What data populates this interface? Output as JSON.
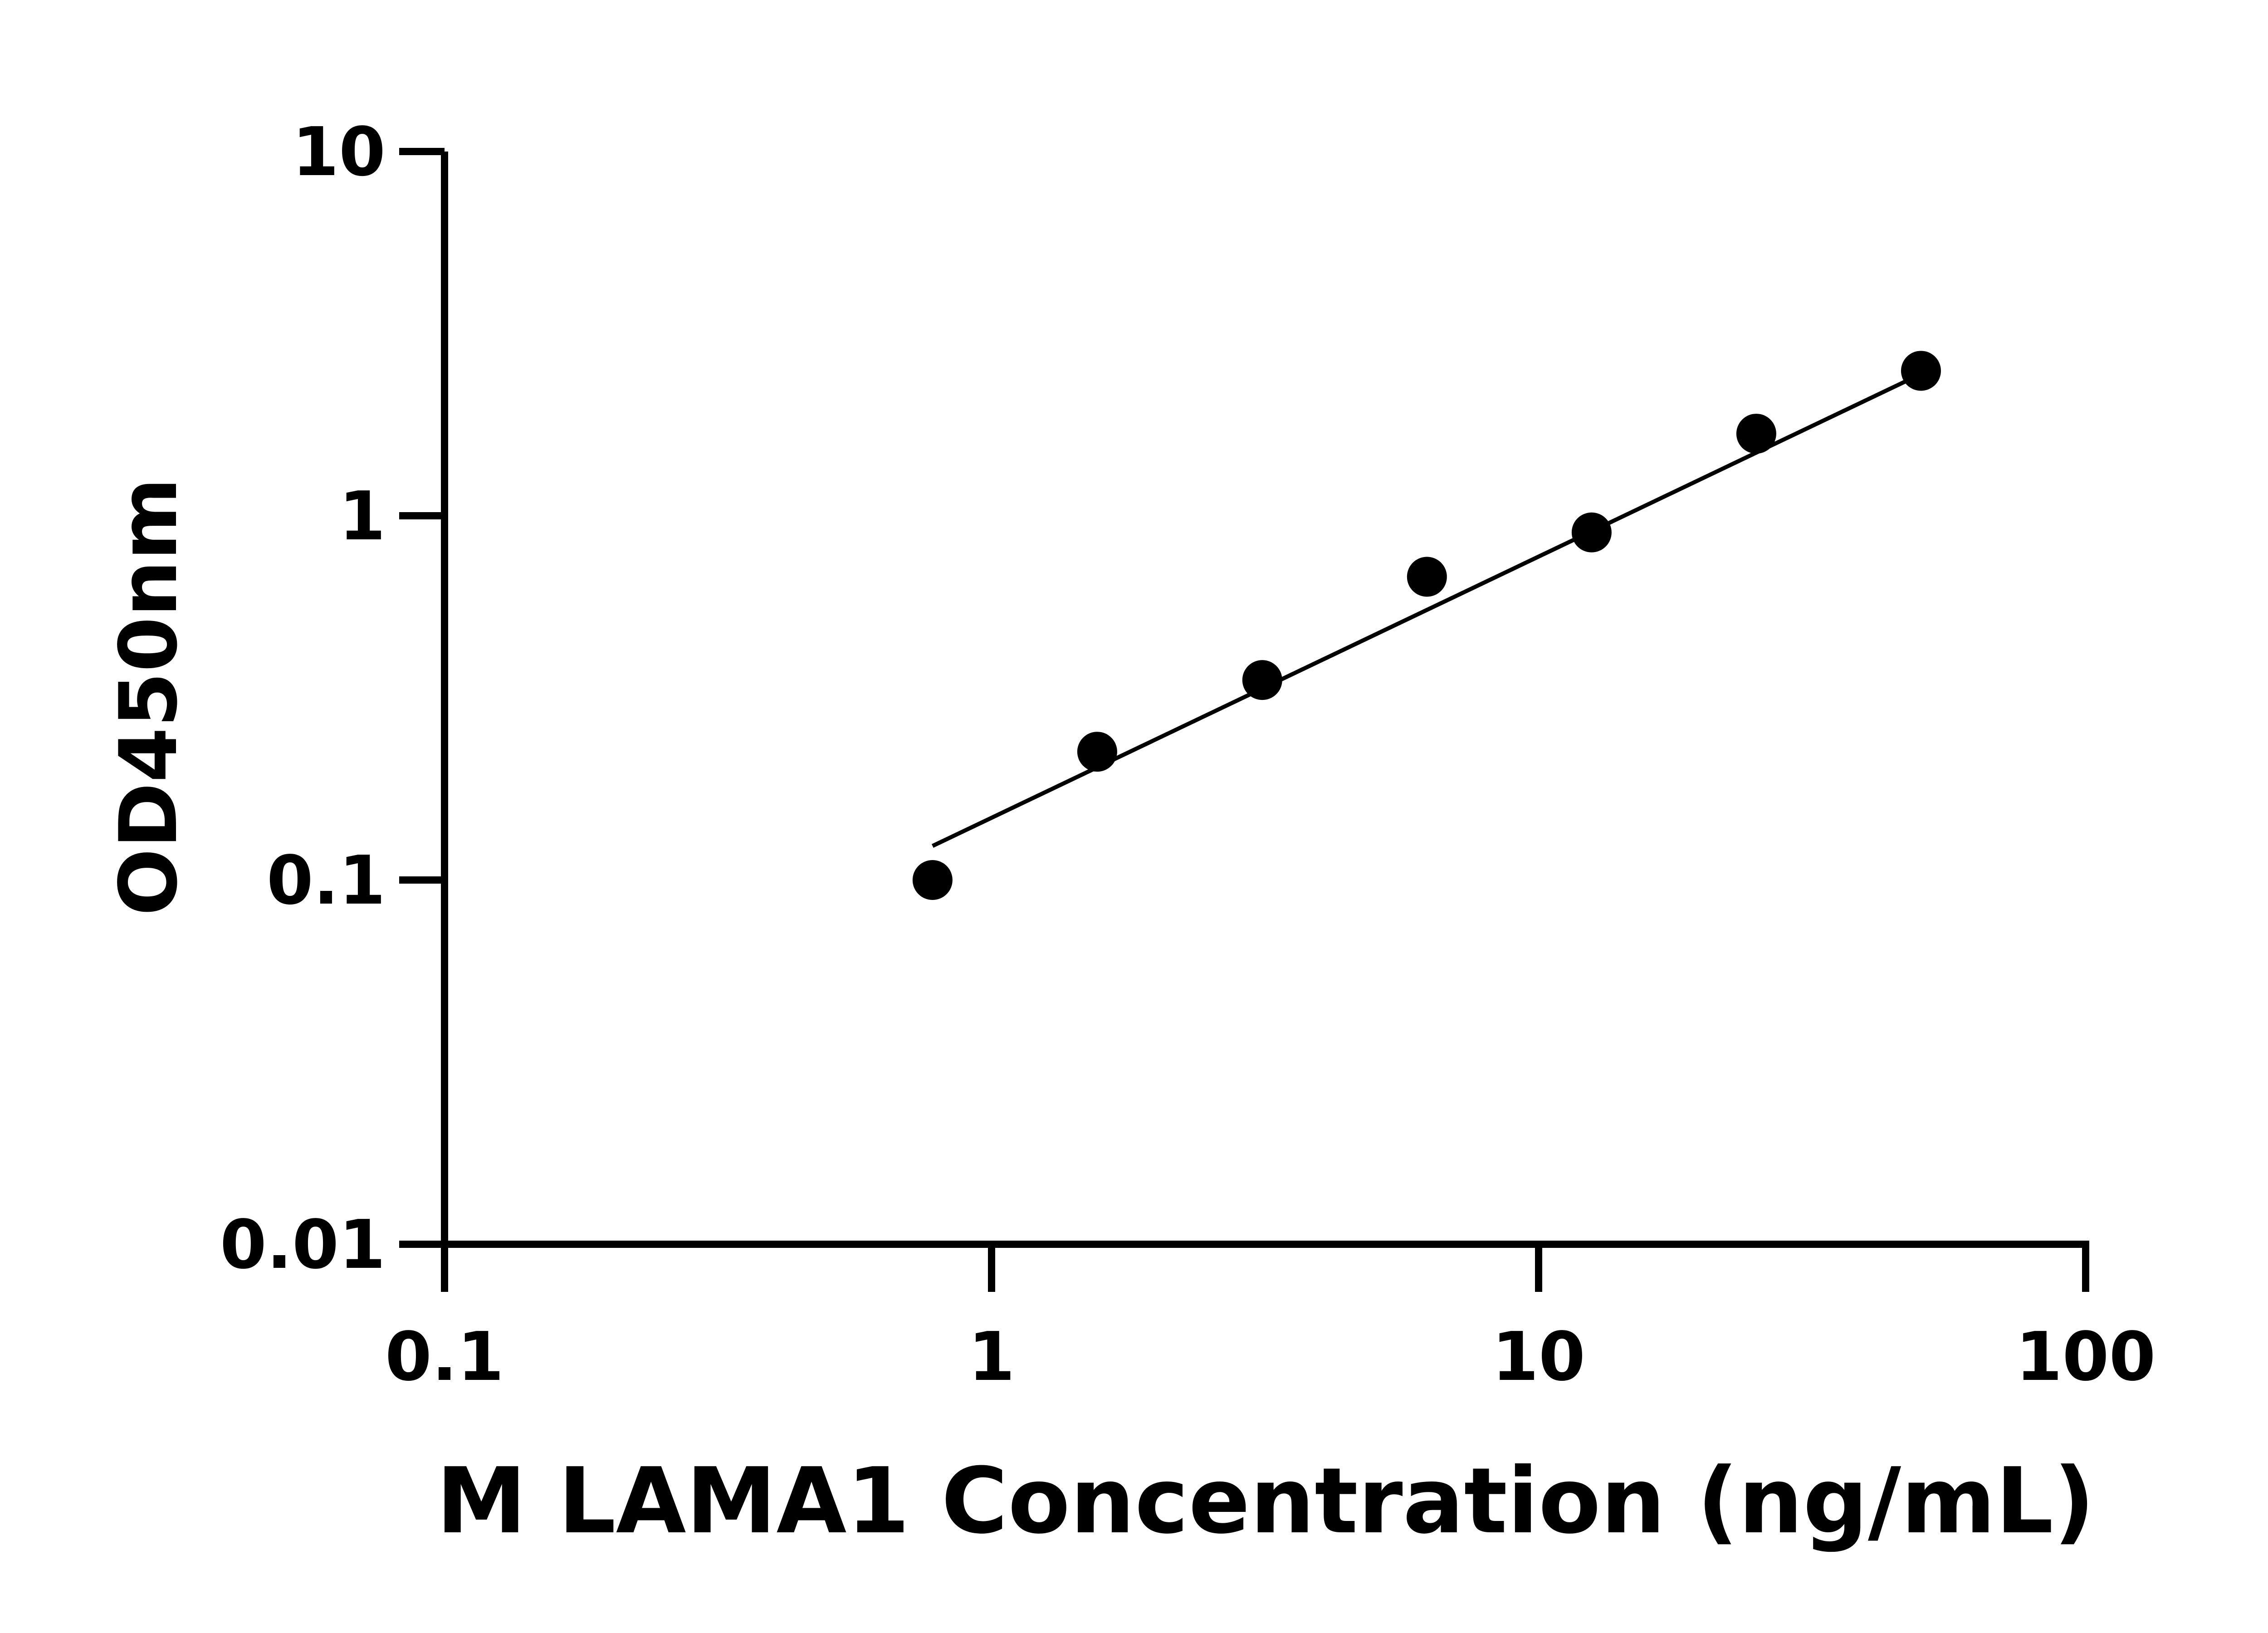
{
  "chart_data": {
    "type": "scatter",
    "title": "",
    "xlabel": "M LAMA1 Concentration (ng/mL)",
    "ylabel": "OD450nm",
    "xscale": "log",
    "yscale": "log",
    "xlim": [
      0.1,
      100
    ],
    "ylim": [
      0.01,
      10
    ],
    "xticks": [
      "0.1",
      "1",
      "10",
      "100"
    ],
    "yticks": [
      "0.01",
      "0.1",
      "1",
      "10"
    ],
    "grid": false,
    "legend": "none",
    "series": [
      {
        "x": [
          0.78,
          1.56,
          3.125,
          6.25,
          12.5,
          25,
          50
        ],
        "y": [
          0.1,
          0.225,
          0.354,
          0.68,
          0.9,
          1.68,
          2.5
        ],
        "marker": "circle",
        "color": "#000000"
      }
    ],
    "fit_line": {
      "x": [
        0.78,
        50
      ],
      "y": [
        0.124,
        2.45
      ],
      "color": "#000000"
    }
  }
}
